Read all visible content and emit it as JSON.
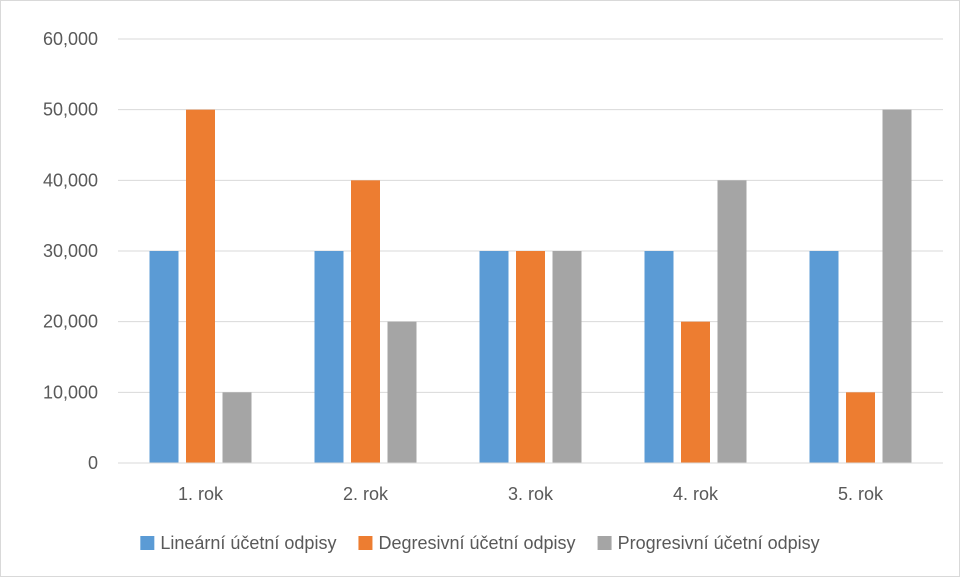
{
  "chart_data": {
    "type": "bar",
    "title": "",
    "xlabel": "",
    "ylabel": "",
    "categories": [
      "1. rok",
      "2. rok",
      "3. rok",
      "4. rok",
      "5. rok"
    ],
    "series": [
      {
        "name": "Lineární účetní odpisy",
        "color": "#5b9bd5",
        "values": [
          30000,
          30000,
          30000,
          30000,
          30000
        ]
      },
      {
        "name": "Degresivní účetní odpisy",
        "color": "#ed7d31",
        "values": [
          50000,
          40000,
          30000,
          20000,
          10000
        ]
      },
      {
        "name": "Progresivní účetní odpisy",
        "color": "#a5a5a5",
        "values": [
          10000,
          20000,
          30000,
          40000,
          50000
        ]
      }
    ],
    "ylim": [
      0,
      60000
    ],
    "ytick_values": [
      0,
      10000,
      20000,
      30000,
      40000,
      50000,
      60000
    ],
    "ytick_labels": [
      "0",
      "10,000",
      "20,000",
      "30,000",
      "40,000",
      "50,000",
      "60,000"
    ],
    "grid": true,
    "legend_position": "bottom"
  }
}
